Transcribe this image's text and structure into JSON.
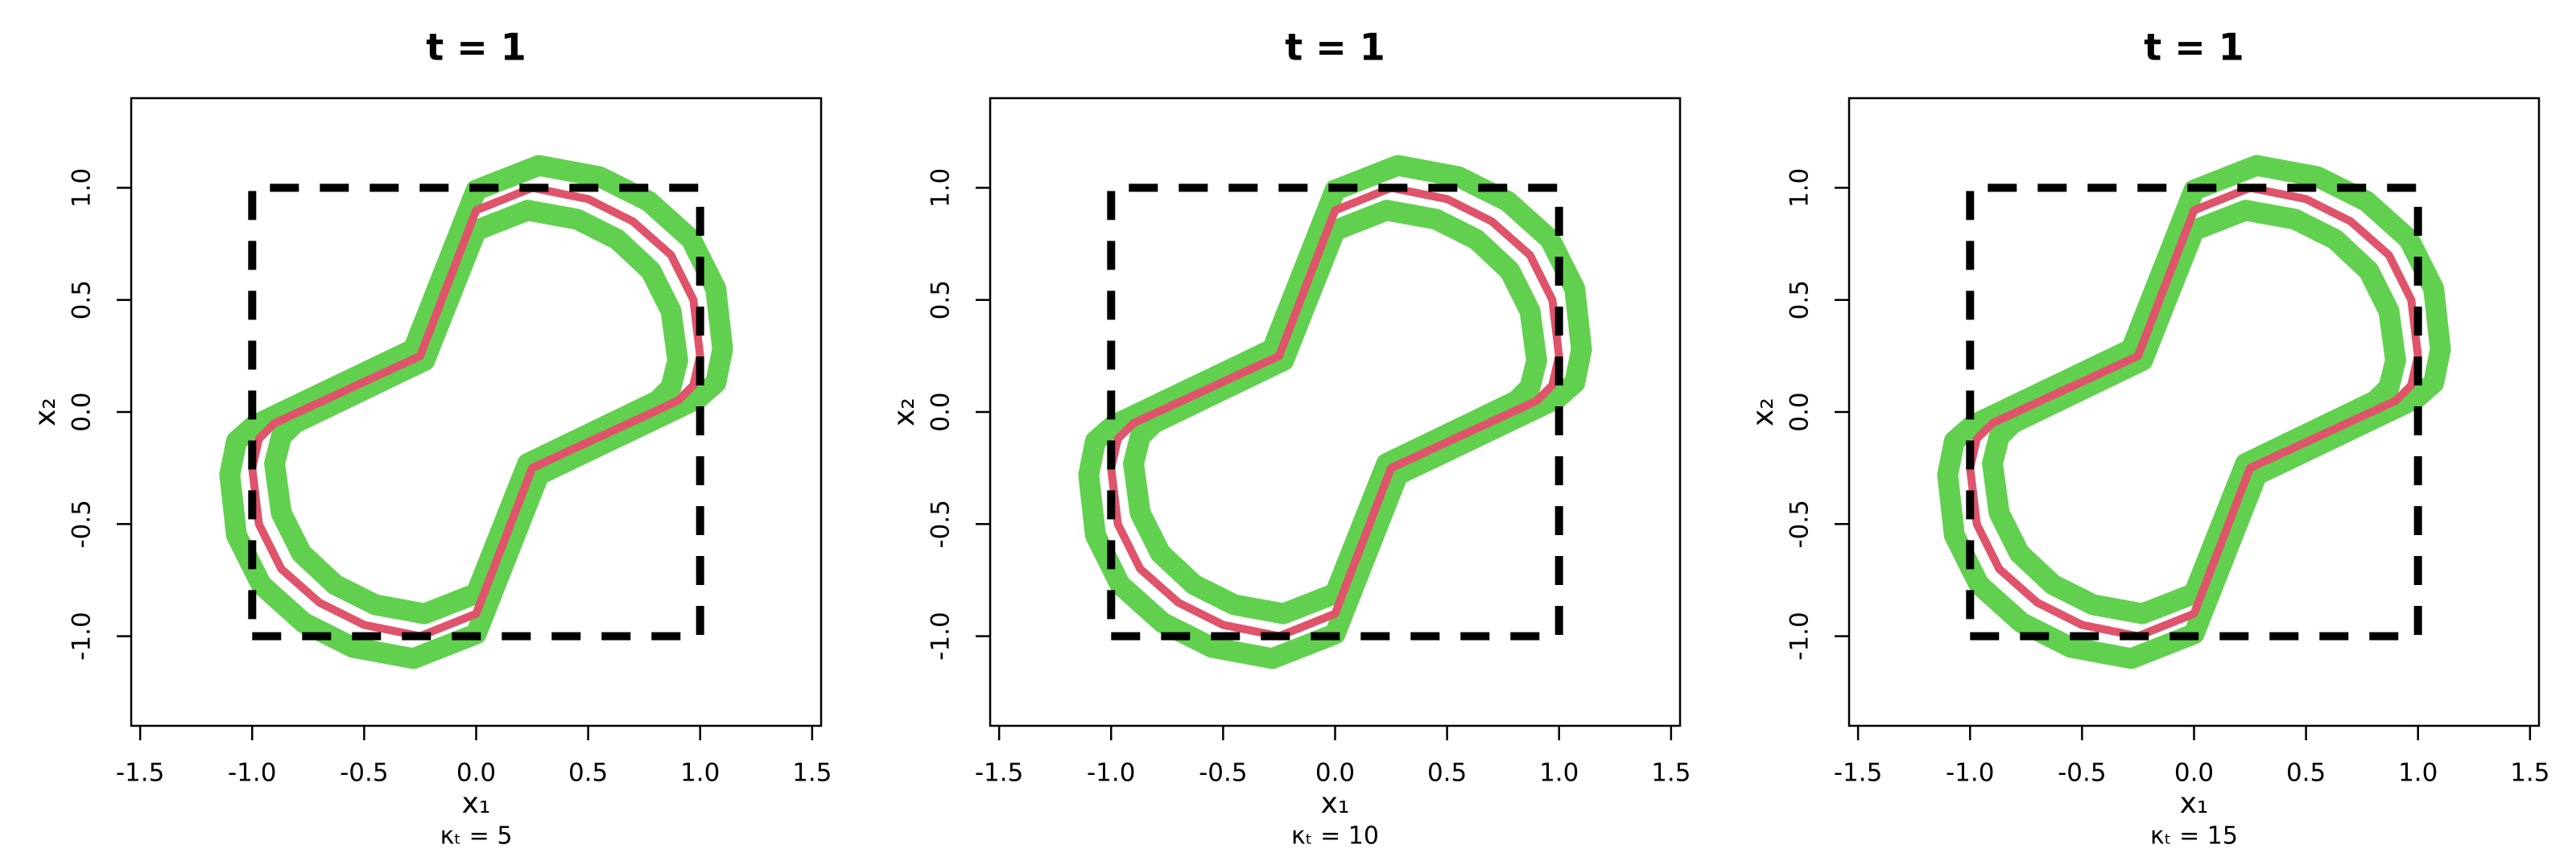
{
  "chart_data": [
    {
      "type": "line",
      "title": "t = 1",
      "xlabel": "x₁",
      "ylabel": "x₂",
      "subtitle": "κₜ = 5",
      "xlim": [
        -1.54,
        1.54
      ],
      "ylim": [
        -1.4,
        1.4
      ],
      "xticks": [
        -1.5,
        {
          "value": -1,
          "label": "-1.0"
        },
        -0.5,
        {
          "value": 0,
          "label": "0.0"
        },
        0.5,
        {
          "value": 1,
          "label": "1.0"
        },
        1.5
      ],
      "yticks": [
        {
          "value": -1,
          "label": "-1.0"
        },
        -0.5,
        {
          "value": 0,
          "label": "0.0"
        },
        0.5,
        {
          "value": 1,
          "label": "1.0"
        }
      ],
      "series": [
        {
          "color": "#61d04f",
          "x": [
            0.28,
            0.55,
            0.77,
            0.96,
            1.07,
            1.1,
            1.07,
            0.99,
            0.28,
            0.0,
            -0.28,
            -0.55,
            -0.77,
            -0.96,
            -1.07,
            -1.1,
            -1.07,
            -0.99,
            -0.28,
            0.0,
            0.28
          ],
          "values": [
            1.1,
            1.05,
            0.94,
            0.77,
            0.55,
            0.28,
            0.13,
            0.06,
            -0.28,
            -0.99,
            -1.1,
            -1.05,
            -0.94,
            -0.77,
            -0.55,
            -0.28,
            -0.13,
            -0.06,
            0.28,
            0.99,
            1.1
          ]
        },
        {
          "color": "#61d04f",
          "x": [
            0.23,
            0.45,
            0.63,
            0.78,
            0.87,
            0.9,
            0.87,
            0.81,
            0.23,
            0.0,
            -0.23,
            -0.45,
            -0.63,
            -0.78,
            -0.87,
            -0.9,
            -0.87,
            -0.81,
            -0.23,
            0.0,
            0.23
          ],
          "values": [
            0.9,
            0.86,
            0.77,
            0.63,
            0.45,
            0.23,
            0.11,
            0.05,
            -0.23,
            -0.81,
            -0.9,
            -0.86,
            -0.77,
            -0.63,
            -0.45,
            -0.23,
            -0.11,
            -0.05,
            0.23,
            0.81,
            0.9
          ]
        },
        {
          "color": "#df536b",
          "x": [
            0.25,
            0.5,
            0.7,
            0.87,
            0.97,
            1.0,
            0.97,
            0.9,
            0.25,
            0.0,
            -0.25,
            -0.5,
            -0.7,
            -0.87,
            -0.97,
            -1.0,
            -0.97,
            -0.9,
            -0.25,
            0.0,
            0.25
          ],
          "values": [
            1.0,
            0.95,
            0.85,
            0.7,
            0.5,
            0.25,
            0.12,
            0.05,
            -0.25,
            -0.9,
            -1.0,
            -0.95,
            -0.85,
            -0.7,
            -0.5,
            -0.25,
            -0.12,
            -0.05,
            0.25,
            0.9,
            1.0
          ]
        },
        {
          "color": "#000000",
          "dashed": true,
          "x": [
            -1,
            1,
            1,
            -1,
            -1
          ],
          "values": [
            -1,
            -1,
            1,
            1,
            -1
          ]
        }
      ]
    },
    {
      "type": "line",
      "title": "t = 1",
      "xlabel": "x₁",
      "ylabel": "x₂",
      "subtitle": "κₜ = 10",
      "xlim": [
        -1.54,
        1.54
      ],
      "ylim": [
        -1.4,
        1.4
      ],
      "xticks": [
        -1.5,
        {
          "value": -1,
          "label": "-1.0"
        },
        -0.5,
        {
          "value": 0,
          "label": "0.0"
        },
        0.5,
        {
          "value": 1,
          "label": "1.0"
        },
        1.5
      ],
      "yticks": [
        {
          "value": -1,
          "label": "-1.0"
        },
        -0.5,
        {
          "value": 0,
          "label": "0.0"
        },
        0.5,
        {
          "value": 1,
          "label": "1.0"
        }
      ],
      "series": [
        {
          "color": "#61d04f",
          "x": [
            0.28,
            0.55,
            0.77,
            0.96,
            1.07,
            1.1,
            1.07,
            0.99,
            0.28,
            0.0,
            -0.28,
            -0.55,
            -0.77,
            -0.96,
            -1.07,
            -1.1,
            -1.07,
            -0.99,
            -0.28,
            0.0,
            0.28
          ],
          "values": [
            1.1,
            1.05,
            0.94,
            0.77,
            0.55,
            0.28,
            0.13,
            0.06,
            -0.28,
            -0.99,
            -1.1,
            -1.05,
            -0.94,
            -0.77,
            -0.55,
            -0.28,
            -0.13,
            -0.06,
            0.28,
            0.99,
            1.1
          ]
        },
        {
          "color": "#61d04f",
          "x": [
            0.23,
            0.45,
            0.63,
            0.78,
            0.87,
            0.9,
            0.87,
            0.81,
            0.23,
            0.0,
            -0.23,
            -0.45,
            -0.63,
            -0.78,
            -0.87,
            -0.9,
            -0.87,
            -0.81,
            -0.23,
            0.0,
            0.23
          ],
          "values": [
            0.9,
            0.86,
            0.77,
            0.63,
            0.45,
            0.23,
            0.11,
            0.05,
            -0.23,
            -0.81,
            -0.9,
            -0.86,
            -0.77,
            -0.63,
            -0.45,
            -0.23,
            -0.11,
            -0.05,
            0.23,
            0.81,
            0.9
          ]
        },
        {
          "color": "#df536b",
          "x": [
            0.25,
            0.5,
            0.7,
            0.87,
            0.97,
            1.0,
            0.97,
            0.9,
            0.25,
            0.0,
            -0.25,
            -0.5,
            -0.7,
            -0.87,
            -0.97,
            -1.0,
            -0.97,
            -0.9,
            -0.25,
            0.0,
            0.25
          ],
          "values": [
            1.0,
            0.95,
            0.85,
            0.7,
            0.5,
            0.25,
            0.12,
            0.05,
            -0.25,
            -0.9,
            -1.0,
            -0.95,
            -0.85,
            -0.7,
            -0.5,
            -0.25,
            -0.12,
            -0.05,
            0.25,
            0.9,
            1.0
          ]
        },
        {
          "color": "#000000",
          "dashed": true,
          "x": [
            -1,
            1,
            1,
            -1,
            -1
          ],
          "values": [
            -1,
            -1,
            1,
            1,
            -1
          ]
        }
      ]
    },
    {
      "type": "line",
      "title": "t = 1",
      "xlabel": "x₁",
      "ylabel": "x₂",
      "subtitle": "κₜ = 15",
      "xlim": [
        -1.54,
        1.54
      ],
      "ylim": [
        -1.4,
        1.4
      ],
      "xticks": [
        -1.5,
        {
          "value": -1,
          "label": "-1.0"
        },
        -0.5,
        {
          "value": 0,
          "label": "0.0"
        },
        0.5,
        {
          "value": 1,
          "label": "1.0"
        },
        1.5
      ],
      "yticks": [
        {
          "value": -1,
          "label": "-1.0"
        },
        -0.5,
        {
          "value": 0,
          "label": "0.0"
        },
        0.5,
        {
          "value": 1,
          "label": "1.0"
        }
      ],
      "series": [
        {
          "color": "#61d04f",
          "x": [
            0.28,
            0.55,
            0.77,
            0.96,
            1.07,
            1.1,
            1.07,
            0.99,
            0.28,
            0.0,
            -0.28,
            -0.55,
            -0.77,
            -0.96,
            -1.07,
            -1.1,
            -1.07,
            -0.99,
            -0.28,
            0.0,
            0.28
          ],
          "values": [
            1.1,
            1.05,
            0.94,
            0.77,
            0.55,
            0.28,
            0.13,
            0.06,
            -0.28,
            -0.99,
            -1.1,
            -1.05,
            -0.94,
            -0.77,
            -0.55,
            -0.28,
            -0.13,
            -0.06,
            0.28,
            0.99,
            1.1
          ]
        },
        {
          "color": "#61d04f",
          "x": [
            0.23,
            0.45,
            0.63,
            0.78,
            0.87,
            0.9,
            0.87,
            0.81,
            0.23,
            0.0,
            -0.23,
            -0.45,
            -0.63,
            -0.78,
            -0.87,
            -0.9,
            -0.87,
            -0.81,
            -0.23,
            0.0,
            0.23
          ],
          "values": [
            0.9,
            0.86,
            0.77,
            0.63,
            0.45,
            0.23,
            0.11,
            0.05,
            -0.23,
            -0.81,
            -0.9,
            -0.86,
            -0.77,
            -0.63,
            -0.45,
            -0.23,
            -0.11,
            -0.05,
            0.23,
            0.81,
            0.9
          ]
        },
        {
          "color": "#df536b",
          "x": [
            0.25,
            0.5,
            0.7,
            0.87,
            0.97,
            1.0,
            0.97,
            0.9,
            0.25,
            0.0,
            -0.25,
            -0.5,
            -0.7,
            -0.87,
            -0.97,
            -1.0,
            -0.97,
            -0.9,
            -0.25,
            0.0,
            0.25
          ],
          "values": [
            1.0,
            0.95,
            0.85,
            0.7,
            0.5,
            0.25,
            0.12,
            0.05,
            -0.25,
            -0.9,
            -1.0,
            -0.95,
            -0.85,
            -0.7,
            -0.5,
            -0.25,
            -0.12,
            -0.05,
            0.25,
            0.9,
            1.0
          ]
        },
        {
          "color": "#000000",
          "dashed": true,
          "x": [
            -1,
            1,
            1,
            -1,
            -1
          ],
          "values": [
            -1,
            -1,
            1,
            1,
            -1
          ]
        }
      ]
    }
  ]
}
